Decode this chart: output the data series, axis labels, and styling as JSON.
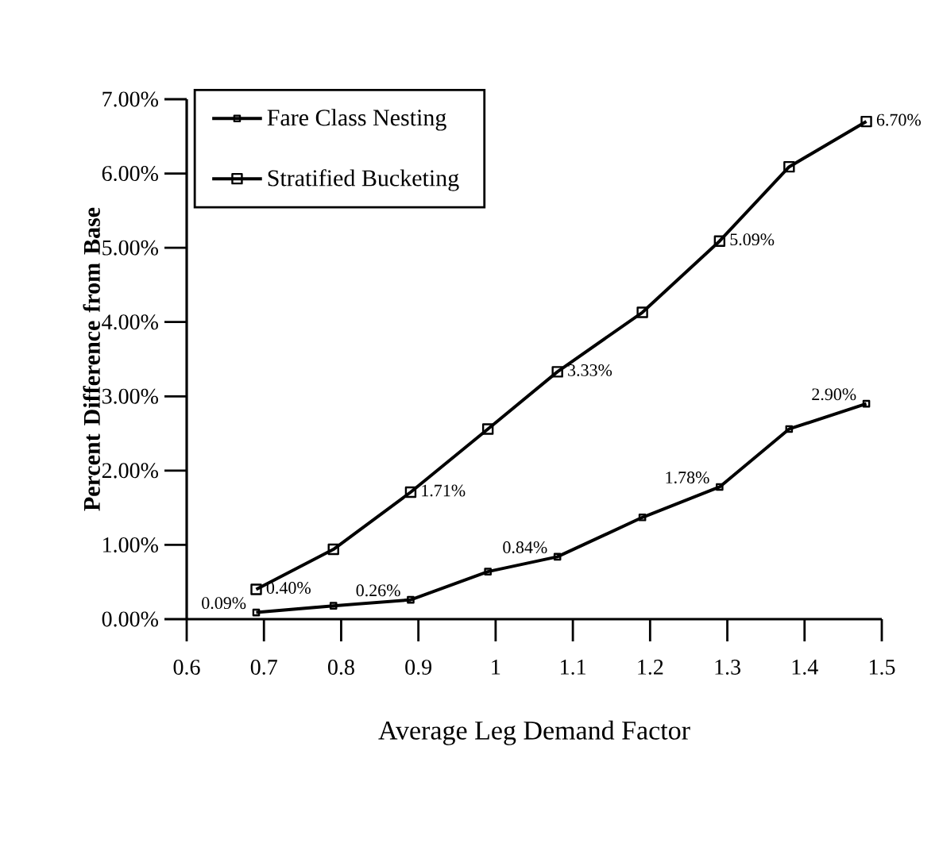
{
  "chart_data": {
    "type": "line",
    "xlabel": "Average Leg Demand Factor",
    "ylabel": "Percent Difference from Base",
    "x": [
      0.69,
      0.79,
      0.89,
      0.99,
      1.08,
      1.19,
      1.29,
      1.38,
      1.48
    ],
    "series": [
      {
        "name": "Fare Class Nesting",
        "color": "#000000",
        "marker": "square",
        "values": [
          0.09,
          0.18,
          0.26,
          0.64,
          0.84,
          1.37,
          1.78,
          2.56,
          2.9
        ],
        "value_labels": [
          "0.09%",
          null,
          "0.26%",
          null,
          "0.84%",
          null,
          "1.78%",
          null,
          "2.90%"
        ]
      },
      {
        "name": "Stratified Bucketing",
        "color": "#000000",
        "marker": "square",
        "values": [
          0.4,
          0.94,
          1.71,
          2.56,
          3.33,
          4.13,
          5.09,
          6.09,
          6.7
        ],
        "value_labels": [
          "0.40%",
          null,
          "1.71%",
          null,
          "3.33%",
          null,
          "5.09%",
          null,
          "6.70%"
        ]
      }
    ],
    "xlim": [
      0.6,
      1.5
    ],
    "xticks": [
      0.6,
      0.7,
      0.8,
      0.9,
      1,
      1.1,
      1.2,
      1.3,
      1.4,
      1.5
    ],
    "ylim": [
      0,
      7
    ],
    "yticks": [
      {
        "value": 0,
        "label": "0.00%"
      },
      {
        "value": 1,
        "label": "1.00%"
      },
      {
        "value": 2,
        "label": "2.00%"
      },
      {
        "value": 3,
        "label": "3.00%"
      },
      {
        "value": 4,
        "label": "4.00%"
      },
      {
        "value": 5,
        "label": "5.00%"
      },
      {
        "value": 6,
        "label": "6.00%"
      },
      {
        "value": 7,
        "label": "7.00%"
      }
    ],
    "grid": false,
    "legend": "top left",
    "line_style": "solid"
  }
}
